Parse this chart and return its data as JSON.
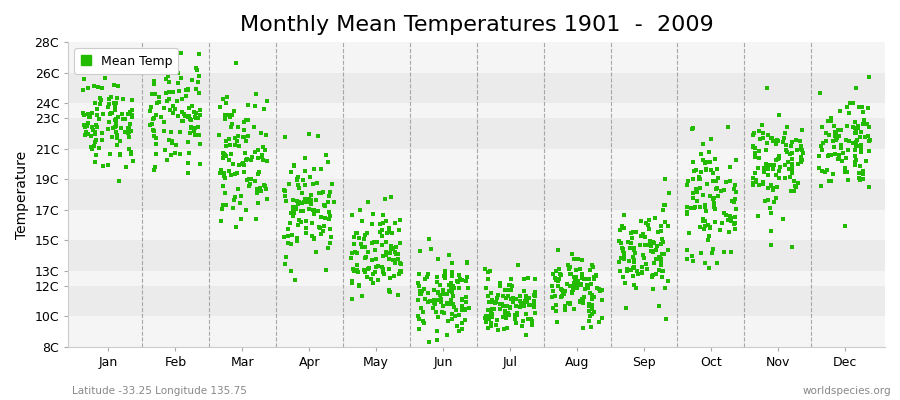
{
  "title": "Monthly Mean Temperatures 1901  -  2009",
  "ylabel": "Temperature",
  "xlabel_bottom": "Latitude -33.25 Longitude 135.75",
  "watermark": "worldspecies.org",
  "legend_label": "Mean Temp",
  "dot_color": "#22bb00",
  "bg_color_light": "#f5f5f5",
  "bg_color_dark": "#ebebeb",
  "fig_bg": "#ffffff",
  "ylim_min": 8,
  "ylim_max": 28,
  "ytick_labels": [
    "8C",
    "10C",
    "12C",
    "13C",
    "15C",
    "17C",
    "19C",
    "21C",
    "23C",
    "24C",
    "26C",
    "28C"
  ],
  "ytick_values": [
    8,
    10,
    12,
    13,
    15,
    17,
    19,
    21,
    23,
    24,
    26,
    28
  ],
  "months": [
    "Jan",
    "Feb",
    "Mar",
    "Apr",
    "May",
    "Jun",
    "Jul",
    "Aug",
    "Sep",
    "Oct",
    "Nov",
    "Dec"
  ],
  "monthly_mean": [
    22.8,
    23.0,
    20.5,
    17.2,
    13.8,
    11.2,
    10.8,
    11.8,
    14.2,
    17.5,
    20.0,
    21.5
  ],
  "monthly_std": [
    1.5,
    1.8,
    2.0,
    1.8,
    1.6,
    1.3,
    1.0,
    1.1,
    1.5,
    1.8,
    1.8,
    1.6
  ],
  "n_years": 109,
  "title_fontsize": 16,
  "axis_label_fontsize": 10,
  "tick_fontsize": 9,
  "marker_size": 8
}
